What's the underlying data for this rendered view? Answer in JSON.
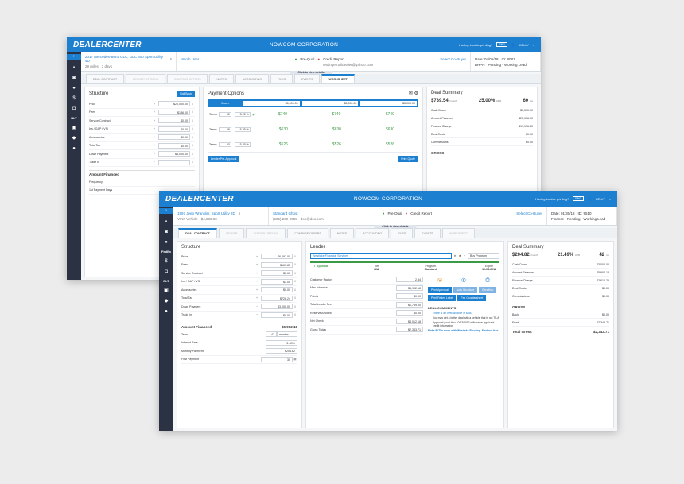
{
  "window1": {
    "logo": "DEALERCENTER",
    "corp": "NOWCOM CORPORATION",
    "help": "Having trouble printing?",
    "badge": "ENG",
    "user": "KELLY",
    "vehicle": {
      "name": "2017 Mercedes-Benz GLC, GLC 300 Sport Utility 4D",
      "sub1": "29 miles",
      "sub2": "3 days"
    },
    "customer": {
      "name": "March User",
      "email": "testingemaildealer@yahoo.com",
      "prequal": "Pre-Qual",
      "credit": "Credit Report",
      "cobuyer": "Select Co-Buyer"
    },
    "deal": {
      "date": "Date: 04/05/18",
      "id": "ID: 8081",
      "type": "BHPH",
      "status": "Pending - Working Lead"
    },
    "click_details": "Click to view details",
    "tabs": [
      "DEAL CONTRACT",
      "LENDER OPTIONS",
      "COMPARE OFFERS",
      "NOTES",
      "ACCOUNTING",
      "FILES",
      "EVENTS",
      "WORKSHEET"
    ],
    "structure": {
      "title": "Structure",
      "rollback": "Roll Back",
      "fields": [
        {
          "label": "Price",
          "op": "+",
          "value": "$20,000.00"
        },
        {
          "label": "Fees",
          "op": "+",
          "value": "$186.00"
        },
        {
          "label": "Service Contract",
          "op": "+",
          "value": "$0.00"
        },
        {
          "label": "Ins / GAP / VSI",
          "op": "+",
          "value": "$0.00"
        },
        {
          "label": "Accessories",
          "op": "+",
          "value": "$0.00"
        },
        {
          "label": "Total Tax",
          "op": "+",
          "value": "$0.00"
        },
        {
          "label": "Down Payment",
          "op": "−",
          "value": "$5,000.00"
        },
        {
          "label": "Trade In",
          "op": "−",
          "value": ""
        }
      ],
      "amount_financed": "Amount Financed",
      "extra": [
        "Frequency",
        "1st Payment Days"
      ]
    },
    "payment": {
      "title": "Payment Options",
      "down_label": "Down",
      "downs": [
        "$5,000.00",
        "$5,000.00",
        "$5,000.00"
      ],
      "rows": [
        {
          "label": "Terms",
          "term": "60",
          "rate": "5.25 %",
          "p": [
            "$740",
            "$740",
            "$740"
          ]
        },
        {
          "label": "Terms",
          "term": "48",
          "rate": "5.25 %",
          "p": [
            "$630",
            "$630",
            "$630"
          ]
        },
        {
          "label": "Terms",
          "term": "60",
          "rate": "5.25 %",
          "p": [
            "$526",
            "$526",
            "$526"
          ]
        }
      ],
      "lender_btn": "Lender Pre-Approval",
      "print_btn": "Print Quote"
    },
    "summary": {
      "title": "Deal Summary",
      "payment": "$739.54",
      "payment_unit": "/month",
      "apr": "25.00%",
      "apr_unit": "APR",
      "term": "60",
      "term_unit": "mo",
      "rows": [
        {
          "label": "Cash Down",
          "value": "$5,000.00"
        },
        {
          "label": "Amount Financed",
          "value": "$25,106.00"
        },
        {
          "label": "Finance Charge",
          "value": "$19,176.40"
        },
        {
          "label": "Deal Costs",
          "value": "$0.00"
        },
        {
          "label": "Commissions",
          "value": "$0.00"
        }
      ],
      "gross": "GROSS"
    }
  },
  "window2": {
    "logo": "DEALERCENTER",
    "corp": "NOWCOM CORPORATION",
    "help": "Having trouble printing?",
    "badge": "ENG",
    "user": "KELLY",
    "vehicle": {
      "name": "1997 Jeep Wrangler, Sport Utility 2D",
      "sub1": "VIN# Vehicle",
      "sub2": "$4,500.00"
    },
    "customer": {
      "name": "Standard Ghost",
      "phone": "(605) 239-9555",
      "email": "don@dco.com",
      "prequal": "Pre-Qual",
      "credit": "Credit Report",
      "cobuyer": "Select Co-Buyer"
    },
    "deal": {
      "date": "Date: 01/30/18",
      "id": "ID: 9510",
      "type": "Finance",
      "status": "Pending - Working Lead"
    },
    "click_details": "Click to view details",
    "tabs": [
      "DEAL CONTRACT",
      "LENDER",
      "LENDER OPTIONS",
      "COMPARE OFFERS",
      "NOTES",
      "ACCOUNTING",
      "FILES",
      "EVENTS",
      "WORKSHEET"
    ],
    "structure": {
      "title": "Structure",
      "fields": [
        {
          "label": "Price",
          "op": "+",
          "value": "$6,097.00"
        },
        {
          "label": "Fees",
          "op": "+",
          "value": "$167.85"
        },
        {
          "label": "Service Contract",
          "op": "+",
          "value": "$0.00"
        },
        {
          "label": "Ins / GAP / VSI",
          "op": "+",
          "value": "$1.00"
        },
        {
          "label": "Accessories",
          "op": "+",
          "value": "$0.00"
        },
        {
          "label": "Total Tax",
          "op": "+",
          "value": "$726.24"
        },
        {
          "label": "Down Payment",
          "op": "−",
          "value": "$3,000.00"
        },
        {
          "label": "Trade In",
          "op": "−",
          "value": "$0.00"
        }
      ],
      "amount_financed": "Amount Financed",
      "amount_financed_value": "$5,902.18",
      "extra": [
        {
          "label": "Term",
          "value": "42",
          "unit": "months"
        },
        {
          "label": "Interest Rate",
          "value": "21.49%"
        },
        {
          "label": "Monthly Payment",
          "value": "$204.82"
        },
        {
          "label": "First Payment",
          "value": "30"
        }
      ]
    },
    "lender": {
      "title": "Lender",
      "selected": "Westlake Financial Services",
      "program_sel": "Buy Program",
      "approval": "Approval",
      "tier_label": "Tier",
      "tier": "N/A",
      "program_label": "Program",
      "program": "Standard",
      "expire_label": "Expire",
      "expire": "10-03-2012",
      "fields": [
        {
          "label": "Customer Factor",
          "value": "2.34"
        },
        {
          "label": "Max Advance",
          "value": "$5,902.18"
        },
        {
          "label": "Points",
          "value": "$0.00"
        },
        {
          "label": "Total Lender Fee",
          "value": "$1,769.00"
        },
        {
          "label": "Reserve Amount",
          "value": "$0.00"
        },
        {
          "label": "Net Check",
          "value": "$4,012.18"
        },
        {
          "label": "Gross Today",
          "value": "$2,343.71"
        }
      ],
      "buttons": [
        "Print Approval",
        "Auto Structure",
        "Sendthru",
        "Print Fedex Label",
        "Fax Countersheet"
      ],
      "comments_title": "DEAL COMMENTS",
      "comments": [
        "There is an overadvance of $850",
        "You may get a better deal with a vehicle that is not TILA",
        "Approval good thru 10/03/2012 with same applicant credit information"
      ],
      "cta": "Make $175+ more with Westlake Flooring. Find out free"
    },
    "summary": {
      "title": "Deal Summary",
      "payment": "$204.82",
      "payment_unit": "/month",
      "apr": "21.49%",
      "apr_unit": "APR",
      "term": "42",
      "term_unit": "mo",
      "rows": [
        {
          "label": "Cash Down",
          "value": "$3,000.00"
        },
        {
          "label": "Amount Financed",
          "value": "$5,902.18"
        },
        {
          "label": "Finance Charge",
          "value": "$2,610.25"
        },
        {
          "label": "Deal Costs",
          "value": "$0.00"
        },
        {
          "label": "Commissions",
          "value": "$0.00"
        }
      ],
      "gross_label": "GROSS",
      "gross_rows": [
        {
          "label": "Back",
          "value": "$0.00"
        },
        {
          "label": "Front",
          "value": "$2,343.71"
        }
      ],
      "total_label": "Total Gross",
      "total_value": "$2,343.71"
    }
  }
}
